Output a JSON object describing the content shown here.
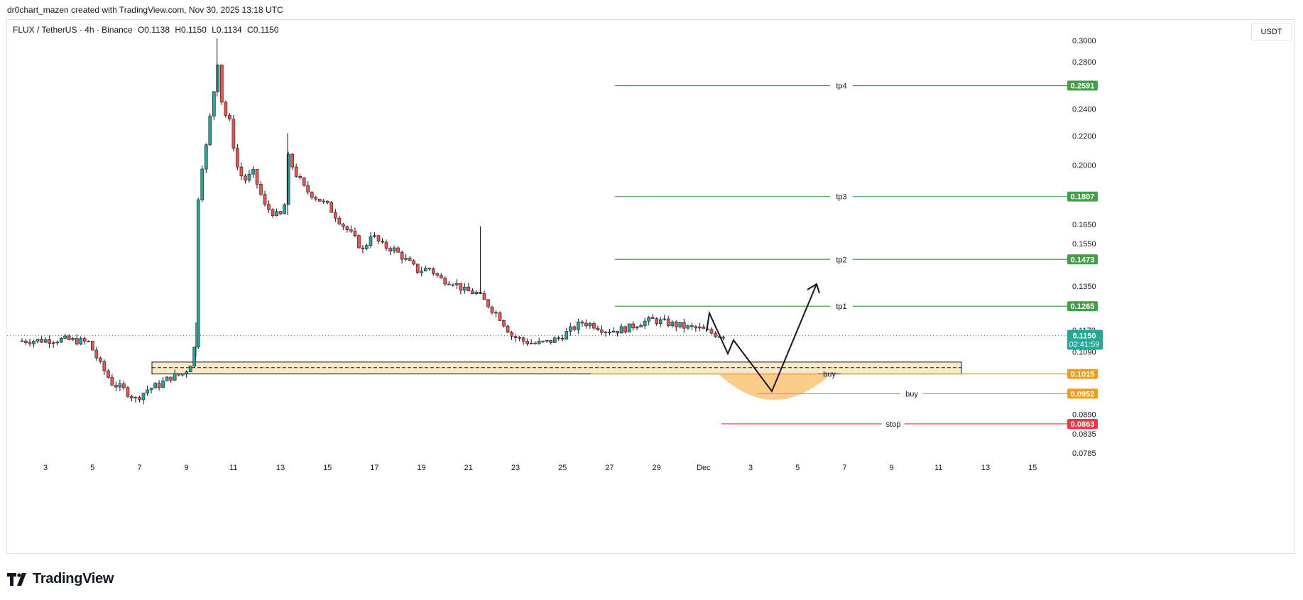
{
  "header": {
    "credit": "dr0chart_mazen created with TradingView.com, Nov 30, 2025 13:18 UTC"
  },
  "symbol": {
    "name": "FLUX / TetherUS · 4h · Binance",
    "open": "O0.1138",
    "high": "H0.1150",
    "low": "L0.1134",
    "close": "C0.1150"
  },
  "currency": "USDT",
  "logo": {
    "text": "TradingView"
  },
  "colors": {
    "up": "#26a69a",
    "down": "#ef5350",
    "tp": "#43a047",
    "buy": "#f59c1a",
    "stop": "#f23645",
    "price": "#22ab94",
    "zone_fill": "#fde9c8"
  },
  "chart_data": {
    "type": "candlestick",
    "title": "FLUX / TetherUS · 4h · Binance",
    "y_axis": {
      "scale": "log",
      "ticks": [
        "0.3000",
        "0.2800",
        "0.2400",
        "0.2200",
        "0.2000",
        "0.1650",
        "0.1550",
        "0.1350",
        "0.1170",
        "0.1090",
        "0.0890",
        "0.0835",
        "0.0785"
      ]
    },
    "x_axis": {
      "ticks": [
        "3",
        "5",
        "7",
        "9",
        "11",
        "13",
        "15",
        "17",
        "19",
        "21",
        "23",
        "25",
        "27",
        "29",
        "Dec",
        "3",
        "5",
        "7",
        "9",
        "11",
        "13",
        "15"
      ]
    },
    "price_path": [
      [
        0,
        0.113
      ],
      [
        2,
        0.1135
      ],
      [
        3,
        0.1125
      ],
      [
        3.5,
        0.1045
      ],
      [
        4,
        0.0985
      ],
      [
        4.5,
        0.0965
      ],
      [
        5,
        0.0935
      ],
      [
        5.5,
        0.0965
      ],
      [
        6,
        0.098
      ],
      [
        6.5,
        0.1005
      ],
      [
        7,
        0.1015
      ],
      [
        7.3,
        0.104
      ],
      [
        7.55,
        0.112
      ],
      [
        7.7,
        0.2
      ],
      [
        7.9,
        0.2
      ],
      [
        8.3,
        0.25
      ],
      [
        8.5,
        0.28
      ],
      [
        8.7,
        0.24
      ],
      [
        9,
        0.23
      ],
      [
        9.3,
        0.2
      ],
      [
        9.6,
        0.19
      ],
      [
        10,
        0.195
      ],
      [
        10.5,
        0.175
      ],
      [
        11,
        0.17
      ],
      [
        11.3,
        0.17
      ],
      [
        11.5,
        0.205
      ],
      [
        11.8,
        0.195
      ],
      [
        12.2,
        0.185
      ],
      [
        12.7,
        0.18
      ],
      [
        13.2,
        0.175
      ],
      [
        13.8,
        0.165
      ],
      [
        14.3,
        0.158
      ],
      [
        14.7,
        0.151
      ],
      [
        15,
        0.16
      ],
      [
        15.5,
        0.154
      ],
      [
        16,
        0.152
      ],
      [
        16.5,
        0.147
      ],
      [
        17,
        0.142
      ],
      [
        17.5,
        0.143
      ],
      [
        18,
        0.138
      ],
      [
        18.5,
        0.137
      ],
      [
        19,
        0.133
      ],
      [
        19.5,
        0.132
      ],
      [
        20,
        0.127
      ],
      [
        20.5,
        0.122
      ],
      [
        21,
        0.115
      ],
      [
        21.5,
        0.113
      ],
      [
        22,
        0.112
      ],
      [
        22.5,
        0.1125
      ],
      [
        23,
        0.114
      ],
      [
        23.5,
        0.117
      ],
      [
        24,
        0.12
      ],
      [
        24.5,
        0.119
      ],
      [
        25,
        0.117
      ],
      [
        25.5,
        0.117
      ],
      [
        26,
        0.118
      ],
      [
        26.5,
        0.12
      ],
      [
        27,
        0.121
      ],
      [
        27.5,
        0.12
      ],
      [
        28,
        0.119
      ],
      [
        28.5,
        0.118
      ],
      [
        29,
        0.1175
      ],
      [
        29.5,
        0.116
      ],
      [
        29.9,
        0.115
      ]
    ],
    "price_spikes": [
      {
        "x": 19.5,
        "high": 0.164
      },
      {
        "x": 11.3,
        "high": 0.222
      },
      {
        "x": 8.3,
        "high": 0.302
      },
      {
        "x": 7.4,
        "high": 0.12
      }
    ],
    "levels": [
      {
        "label": "tp4",
        "price": 0.2591,
        "badge": "0.2591",
        "kind": "tp"
      },
      {
        "label": "tp3",
        "price": 0.1807,
        "badge": "0.1807",
        "kind": "tp"
      },
      {
        "label": "tp2",
        "price": 0.1473,
        "badge": "0.1473",
        "kind": "tp"
      },
      {
        "label": "tp1",
        "price": 0.1265,
        "badge": "0.1265",
        "kind": "tp"
      },
      {
        "label": "buy",
        "price": 0.1015,
        "badge": "0.1015",
        "kind": "buy"
      },
      {
        "label": "buy",
        "price": 0.0952,
        "badge": "0.0952",
        "kind": "buy"
      },
      {
        "label": "stop",
        "price": 0.0863,
        "badge": "0.0863",
        "kind": "stop"
      }
    ],
    "last_price": {
      "price": 0.115,
      "label": "0.1150",
      "countdown": "02:41:59"
    },
    "zone": {
      "top": 0.1055,
      "bottom": 0.1015,
      "mid": 0.1036
    }
  }
}
